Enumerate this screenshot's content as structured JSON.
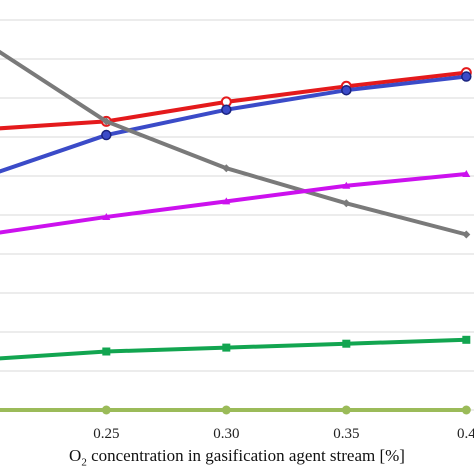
{
  "chart_data": {
    "type": "line",
    "xlabel": {
      "prefix": "O",
      "subscript": "2",
      "suffix": " concentration in gasification agent stream [%]"
    },
    "x": [
      0.2,
      0.25,
      0.3,
      0.35,
      0.4
    ],
    "xticks": [
      {
        "value": 0.25,
        "label": "0.25"
      },
      {
        "value": 0.3,
        "label": "0.30"
      },
      {
        "value": 0.35,
        "label": "0.35"
      },
      {
        "value": 0.4,
        "label": "0.4"
      }
    ],
    "xlim": [
      0.2057,
      0.4032
    ],
    "ylim": [
      0,
      10
    ],
    "grid": true,
    "legend": "none",
    "series": [
      {
        "color": "#e41a1c",
        "marker": "circle-open",
        "values": [
          7.2,
          7.4,
          7.9,
          8.3,
          8.65
        ]
      },
      {
        "color": "#3b4bc8",
        "marker": "circle-filled",
        "values": [
          6.0,
          7.05,
          7.7,
          8.2,
          8.55
        ]
      },
      {
        "color": "#7a7a7a",
        "marker": "diamond",
        "values": [
          9.4,
          7.4,
          6.2,
          5.3,
          4.5
        ]
      },
      {
        "color": "#cc11ee",
        "marker": "triangle",
        "values": [
          4.5,
          4.95,
          5.35,
          5.75,
          6.05
        ]
      },
      {
        "color": "#12a550",
        "marker": "square",
        "values": [
          1.3,
          1.5,
          1.6,
          1.7,
          1.8
        ]
      },
      {
        "color": "#9bbb59",
        "marker": "circle-filled",
        "values": [
          0.0,
          0.0,
          0.0,
          0.0,
          0.0
        ]
      }
    ]
  }
}
